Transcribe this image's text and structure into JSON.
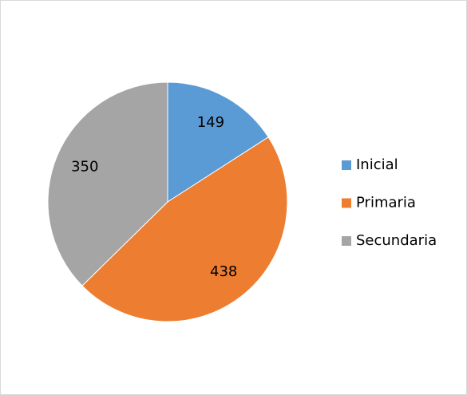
{
  "chart_data": {
    "type": "pie",
    "categories": [
      "Inicial",
      "Primaria",
      "Secundaria"
    ],
    "values": [
      149,
      438,
      350
    ],
    "colors": [
      "#5b9bd5",
      "#ed7d31",
      "#a5a5a5"
    ],
    "legend": "right"
  }
}
